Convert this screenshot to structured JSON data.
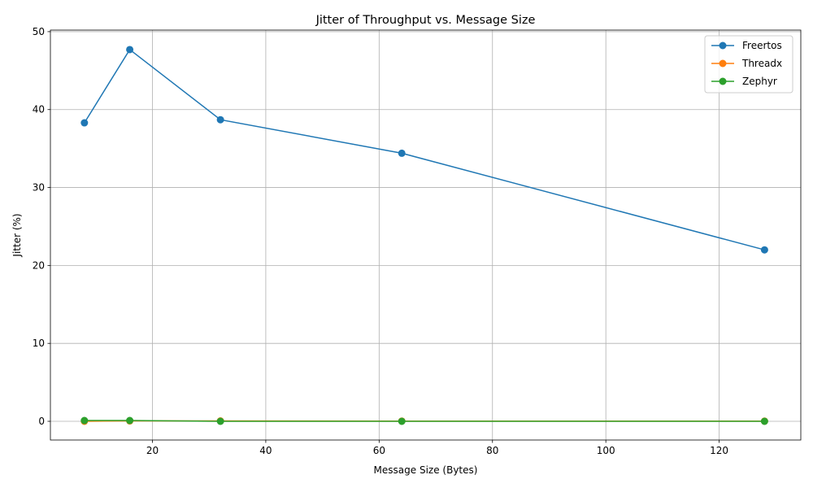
{
  "chart_data": {
    "type": "line",
    "title": "Jitter of Throughput vs. Message Size",
    "xlabel": "Message Size (Bytes)",
    "ylabel": "Jitter (%)",
    "x": [
      8,
      16,
      32,
      64,
      128
    ],
    "xlim": [
      2,
      134.4
    ],
    "ylim": [
      -2.4,
      50.2
    ],
    "xticks": [
      20,
      40,
      60,
      80,
      100,
      120
    ],
    "yticks": [
      0,
      10,
      20,
      30,
      40,
      50
    ],
    "grid": true,
    "legend_position": "top-right",
    "series": [
      {
        "name": "Freertos",
        "color": "#1f77b4",
        "values": [
          38.3,
          47.7,
          38.7,
          34.4,
          22.0
        ]
      },
      {
        "name": "Threadx",
        "color": "#ff7f0e",
        "values": [
          0.0,
          0.05,
          0.05,
          0.03,
          0.02
        ]
      },
      {
        "name": "Zephyr",
        "color": "#2ca02c",
        "values": [
          0.1,
          0.1,
          0.0,
          0.0,
          0.0
        ]
      }
    ]
  }
}
